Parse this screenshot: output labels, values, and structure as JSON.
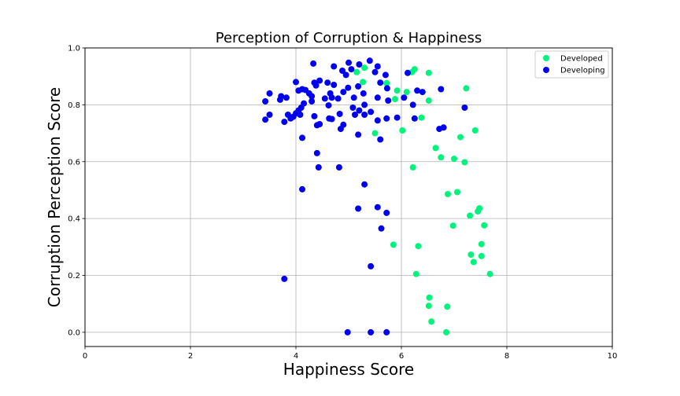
{
  "chart_data": {
    "type": "scatter",
    "title": "Perception of Corruption & Happiness",
    "xlabel": "Happiness Score",
    "ylabel": "Corruption Perception Score",
    "xlim": [
      0,
      10
    ],
    "ylim": [
      -0.05,
      1.0
    ],
    "xticks": [
      "0",
      "2",
      "4",
      "6",
      "8",
      "10"
    ],
    "yticks": [
      "0.0",
      "0.2",
      "0.4",
      "0.6",
      "0.8",
      "1.0"
    ],
    "grid": true,
    "legend_position": "top-right",
    "series": [
      {
        "name": "Developed",
        "color": "#00f47c",
        "points": [
          [
            5.15,
            0.915
          ],
          [
            5.3,
            0.93
          ],
          [
            5.27,
            0.88
          ],
          [
            5.72,
            0.876
          ],
          [
            6.2,
            0.915
          ],
          [
            6.25,
            0.925
          ],
          [
            6.52,
            0.912
          ],
          [
            5.92,
            0.85
          ],
          [
            6.1,
            0.845
          ],
          [
            6.52,
            0.815
          ],
          [
            7.23,
            0.858
          ],
          [
            5.88,
            0.82
          ],
          [
            6.38,
            0.755
          ],
          [
            6.02,
            0.71
          ],
          [
            5.5,
            0.7
          ],
          [
            6.65,
            0.648
          ],
          [
            6.75,
            0.615
          ],
          [
            7.0,
            0.61
          ],
          [
            7.12,
            0.686
          ],
          [
            7.4,
            0.71
          ],
          [
            6.22,
            0.58
          ],
          [
            7.2,
            0.598
          ],
          [
            6.88,
            0.486
          ],
          [
            7.06,
            0.493
          ],
          [
            7.48,
            0.436
          ],
          [
            7.45,
            0.425
          ],
          [
            7.3,
            0.41
          ],
          [
            7.57,
            0.376
          ],
          [
            6.98,
            0.375
          ],
          [
            7.52,
            0.31
          ],
          [
            5.85,
            0.308
          ],
          [
            6.32,
            0.303
          ],
          [
            7.32,
            0.273
          ],
          [
            7.52,
            0.268
          ],
          [
            7.37,
            0.247
          ],
          [
            7.68,
            0.205
          ],
          [
            6.28,
            0.205
          ],
          [
            6.53,
            0.122
          ],
          [
            6.52,
            0.093
          ],
          [
            6.87,
            0.09
          ],
          [
            6.57,
            0.038
          ],
          [
            6.85,
            0.0
          ]
        ]
      },
      {
        "name": "Developing",
        "color": "#0000ee",
        "points": [
          [
            4.33,
            0.945
          ],
          [
            5.0,
            0.948
          ],
          [
            5.4,
            0.955
          ],
          [
            5.2,
            0.942
          ],
          [
            4.72,
            0.935
          ],
          [
            5.55,
            0.935
          ],
          [
            5.05,
            0.925
          ],
          [
            4.88,
            0.92
          ],
          [
            5.5,
            0.915
          ],
          [
            5.7,
            0.905
          ],
          [
            4.95,
            0.905
          ],
          [
            6.12,
            0.912
          ],
          [
            4.0,
            0.88
          ],
          [
            4.35,
            0.878
          ],
          [
            4.45,
            0.885
          ],
          [
            4.6,
            0.878
          ],
          [
            4.38,
            0.868
          ],
          [
            4.72,
            0.87
          ],
          [
            4.99,
            0.86
          ],
          [
            5.18,
            0.865
          ],
          [
            5.6,
            0.878
          ],
          [
            5.73,
            0.858
          ],
          [
            6.3,
            0.85
          ],
          [
            6.4,
            0.845
          ],
          [
            6.75,
            0.855
          ],
          [
            4.05,
            0.85
          ],
          [
            4.12,
            0.855
          ],
          [
            4.18,
            0.852
          ],
          [
            4.25,
            0.84
          ],
          [
            4.65,
            0.84
          ],
          [
            4.9,
            0.845
          ],
          [
            5.28,
            0.84
          ],
          [
            3.5,
            0.84
          ],
          [
            3.72,
            0.83
          ],
          [
            3.7,
            0.818
          ],
          [
            3.82,
            0.825
          ],
          [
            4.3,
            0.83
          ],
          [
            4.55,
            0.822
          ],
          [
            4.68,
            0.825
          ],
          [
            4.8,
            0.822
          ],
          [
            5.1,
            0.825
          ],
          [
            5.55,
            0.825
          ],
          [
            5.75,
            0.815
          ],
          [
            6.05,
            0.825
          ],
          [
            3.42,
            0.812
          ],
          [
            4.3,
            0.812
          ],
          [
            4.15,
            0.805
          ],
          [
            4.62,
            0.798
          ],
          [
            5.3,
            0.8
          ],
          [
            5.08,
            0.79
          ],
          [
            5.2,
            0.78
          ],
          [
            6.22,
            0.8
          ],
          [
            7.2,
            0.79
          ],
          [
            4.1,
            0.79
          ],
          [
            4.05,
            0.78
          ],
          [
            3.85,
            0.765
          ],
          [
            4.0,
            0.77
          ],
          [
            4.08,
            0.765
          ],
          [
            4.35,
            0.76
          ],
          [
            4.63,
            0.752
          ],
          [
            4.83,
            0.768
          ],
          [
            5.12,
            0.765
          ],
          [
            5.3,
            0.765
          ],
          [
            5.42,
            0.775
          ],
          [
            5.55,
            0.745
          ],
          [
            5.92,
            0.755
          ],
          [
            6.25,
            0.752
          ],
          [
            5.72,
            0.752
          ],
          [
            3.5,
            0.765
          ],
          [
            3.42,
            0.748
          ],
          [
            3.9,
            0.752
          ],
          [
            3.95,
            0.758
          ],
          [
            3.78,
            0.74
          ],
          [
            4.4,
            0.728
          ],
          [
            4.45,
            0.732
          ],
          [
            4.68,
            0.75
          ],
          [
            4.9,
            0.73
          ],
          [
            4.85,
            0.715
          ],
          [
            6.72,
            0.715
          ],
          [
            6.8,
            0.72
          ],
          [
            5.18,
            0.695
          ],
          [
            5.6,
            0.678
          ],
          [
            4.12,
            0.684
          ],
          [
            4.4,
            0.63
          ],
          [
            4.43,
            0.58
          ],
          [
            4.82,
            0.58
          ],
          [
            5.3,
            0.52
          ],
          [
            4.12,
            0.503
          ],
          [
            5.18,
            0.435
          ],
          [
            5.55,
            0.44
          ],
          [
            5.72,
            0.42
          ],
          [
            5.62,
            0.365
          ],
          [
            5.42,
            0.232
          ],
          [
            3.78,
            0.188
          ],
          [
            4.98,
            0.0
          ],
          [
            5.42,
            0.0
          ],
          [
            5.72,
            0.0
          ]
        ]
      }
    ]
  }
}
